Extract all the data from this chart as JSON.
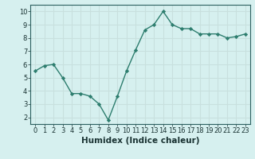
{
  "x": [
    0,
    1,
    2,
    3,
    4,
    5,
    6,
    7,
    8,
    9,
    10,
    11,
    12,
    13,
    14,
    15,
    16,
    17,
    18,
    19,
    20,
    21,
    22,
    23
  ],
  "y": [
    5.5,
    5.9,
    6.0,
    5.0,
    3.8,
    3.8,
    3.6,
    3.0,
    1.8,
    3.6,
    5.5,
    7.1,
    8.6,
    9.0,
    10.0,
    9.0,
    8.7,
    8.7,
    8.3,
    8.3,
    8.3,
    8.0,
    8.1,
    8.3
  ],
  "line_color": "#2d7d6e",
  "marker": "D",
  "marker_size": 2.2,
  "linewidth": 1.0,
  "xlabel": "Humidex (Indice chaleur)",
  "xlabel_fontsize": 7.5,
  "xlabel_weight": "bold",
  "bg_color": "#d6f0ef",
  "grid_color": "#c8e0de",
  "xlim": [
    -0.5,
    23.5
  ],
  "ylim": [
    1.5,
    10.5
  ],
  "yticks": [
    2,
    3,
    4,
    5,
    6,
    7,
    8,
    9,
    10
  ],
  "xticks": [
    0,
    1,
    2,
    3,
    4,
    5,
    6,
    7,
    8,
    9,
    10,
    11,
    12,
    13,
    14,
    15,
    16,
    17,
    18,
    19,
    20,
    21,
    22,
    23
  ],
  "tick_fontsize": 6,
  "tick_color": "#1a3333",
  "axis_color": "#2d6060",
  "spine_color": "#2d6060"
}
